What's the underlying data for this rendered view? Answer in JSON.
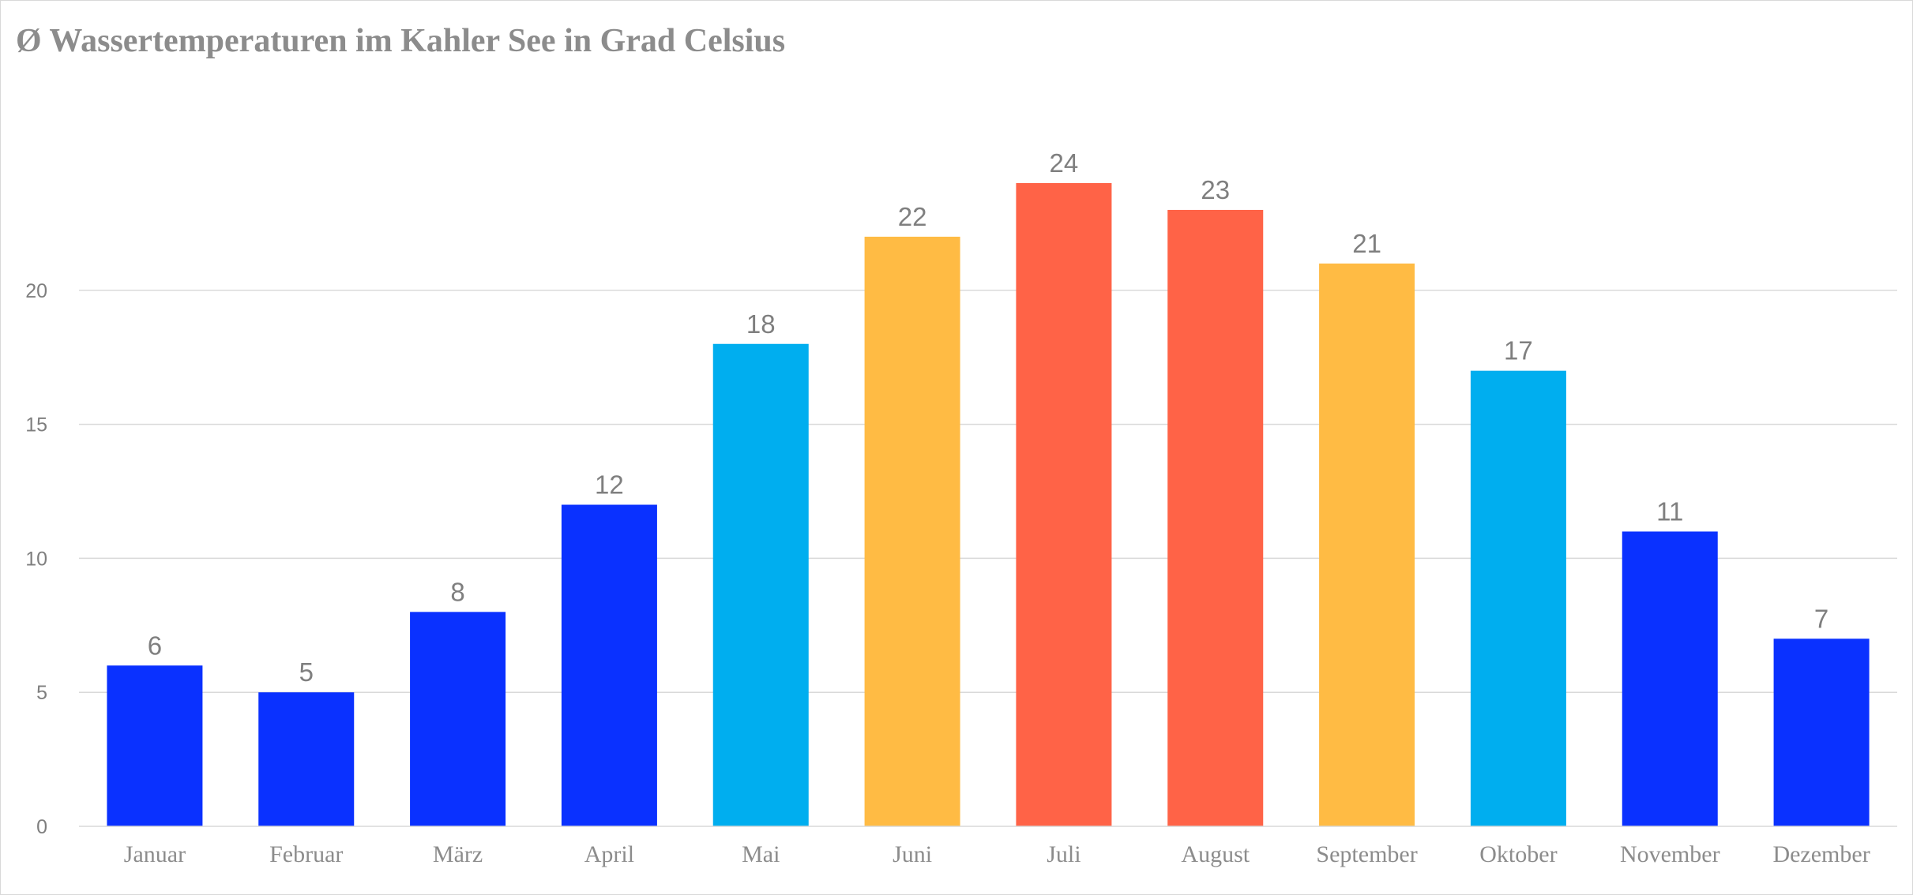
{
  "chart_data": {
    "type": "bar",
    "title": "Ø Wassertemperaturen im Kahler See in Grad Celsius",
    "xlabel": "",
    "ylabel": "",
    "categories": [
      "Januar",
      "Februar",
      "März",
      "April",
      "Mai",
      "Juni",
      "Juli",
      "August",
      "September",
      "Oktober",
      "November",
      "Dezember"
    ],
    "values": [
      6,
      5,
      8,
      12,
      18,
      22,
      24,
      23,
      21,
      17,
      11,
      7
    ],
    "colors": [
      "#0A31FF",
      "#0A31FF",
      "#0A31FF",
      "#0A31FF",
      "#00AEEF",
      "#FFBB44",
      "#FF6347",
      "#FF6347",
      "#FFBB44",
      "#00AEEF",
      "#0A31FF",
      "#0A31FF"
    ],
    "ylim": [
      0,
      24
    ],
    "yticks": [
      0,
      5,
      10,
      15,
      20
    ],
    "grid": true,
    "data_labels": true,
    "legend": "none",
    "gridline_color": "#d9d9d9"
  }
}
